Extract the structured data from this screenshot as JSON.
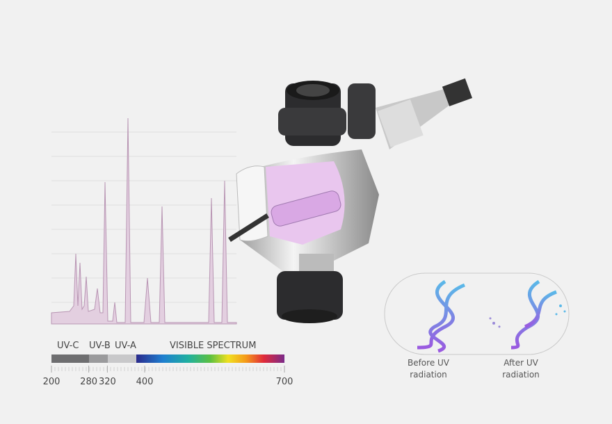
{
  "spectrum": {
    "bands": [
      "UV-C",
      "UV-B",
      "UV-A",
      "VISIBLE SPECTRUM"
    ],
    "xlim": [
      200,
      700
    ],
    "xticks": [
      200,
      280,
      320,
      400,
      700
    ]
  },
  "dna": {
    "before": "Before UV radiation",
    "after": "After UV radiation"
  }
}
